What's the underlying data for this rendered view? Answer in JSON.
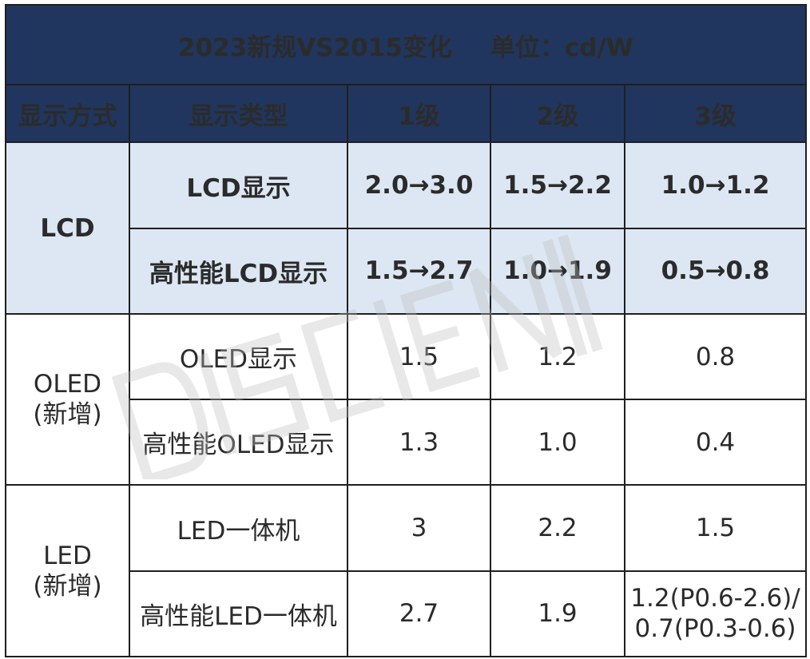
{
  "table": {
    "title": {
      "main": "2023新规VS2015变化",
      "unit": "单位：cd/W"
    },
    "headers": [
      "显示方式",
      "显示类型",
      "1级",
      "2级",
      "3级"
    ],
    "groups": [
      {
        "method": "LCD",
        "rows": [
          {
            "type": "LCD显示",
            "level1": "2.0→3.0",
            "level2": "1.5→2.2",
            "level3": "1.0→1.2"
          },
          {
            "type": "高性能LCD显示",
            "level1": "1.5→2.7",
            "level2": "1.0→1.9",
            "level3": "0.5→0.8"
          }
        ]
      },
      {
        "method_line1": "OLED",
        "method_line2": "(新增)",
        "rows": [
          {
            "type": "OLED显示",
            "level1": "1.5",
            "level2": "1.2",
            "level3": "0.8"
          },
          {
            "type": "高性能OLED显示",
            "level1": "1.3",
            "level2": "1.0",
            "level3": "0.4"
          }
        ]
      },
      {
        "method_line1": "LED",
        "method_line2": "(新增)",
        "rows": [
          {
            "type": "LED一体机",
            "level1": "3",
            "level2": "2.2",
            "level3": "1.5"
          },
          {
            "type": "高性能LED一体机",
            "level1": "2.7",
            "level2": "1.9",
            "level3_line1": "1.2(P0.6-2.6)/",
            "level3_line2": "0.7(P0.3-0.6)"
          }
        ]
      }
    ]
  },
  "watermark": {
    "text": "DISCIEN"
  },
  "colors": {
    "header_bg": "#20365e",
    "header_text": "#ffffff",
    "lcd_row_bg": "#dde7f3",
    "border": "#1f1f1f"
  }
}
